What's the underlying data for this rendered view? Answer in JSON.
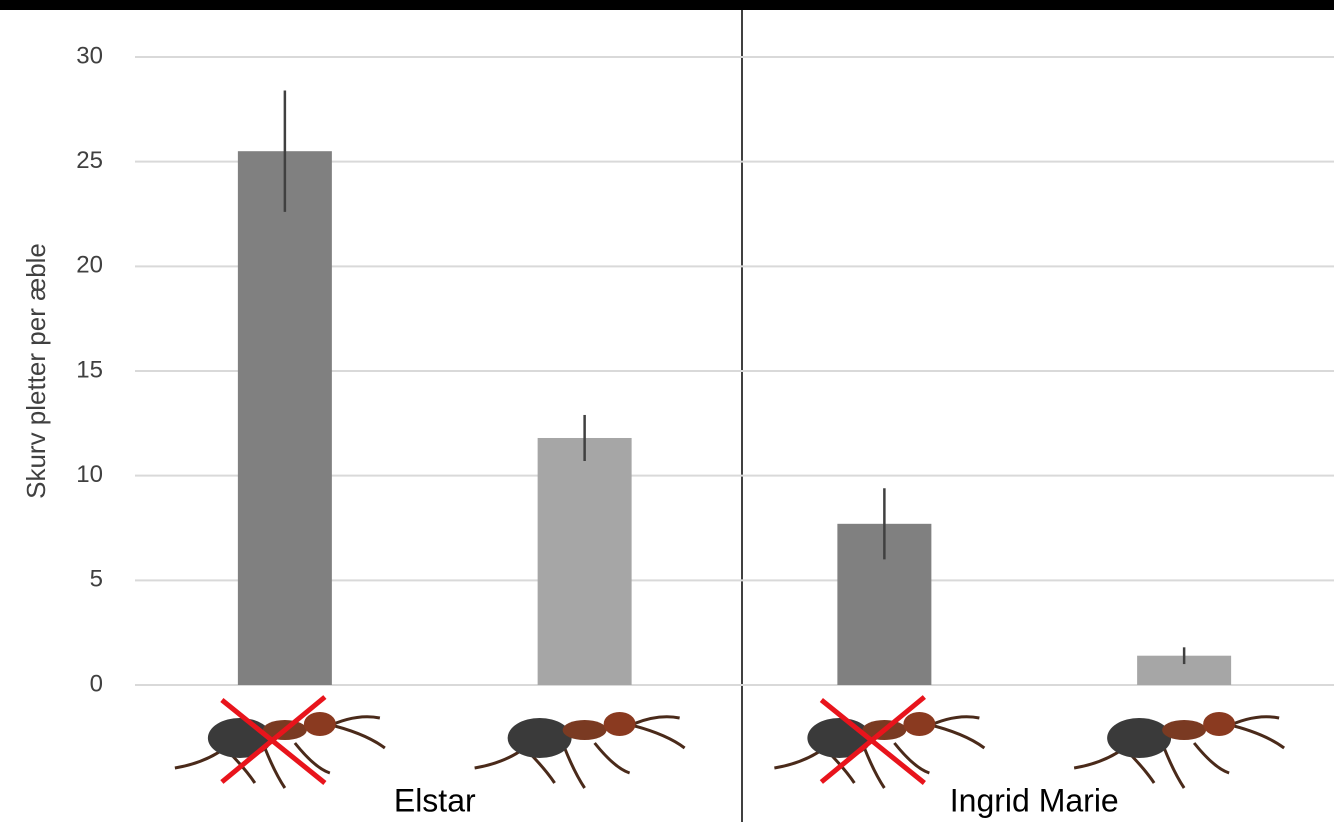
{
  "chart_data": {
    "type": "bar",
    "y_label": "Skurv pletter per æble",
    "categories": [
      null,
      null,
      null,
      null
    ],
    "groups": [
      "Elstar",
      "Ingrid Marie"
    ],
    "values": [
      25.5,
      11.8,
      7.7,
      1.4
    ],
    "errors": [
      2.9,
      1.1,
      1.7,
      0.4
    ],
    "colors": [
      "#808080",
      "#a6a6a6",
      "#808080",
      "#a6a6a6"
    ],
    "ylim": [
      0,
      30
    ],
    "yticks": [
      0,
      5,
      10,
      15,
      20,
      25,
      30
    ],
    "grid": true
  }
}
